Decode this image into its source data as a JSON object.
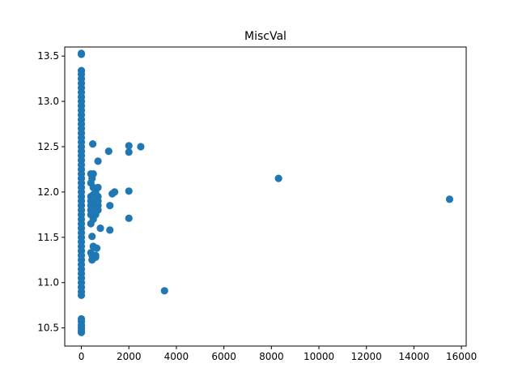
{
  "chart_data": {
    "type": "scatter",
    "title": "MiscVal",
    "xlabel": "",
    "ylabel": "",
    "xlim": [
      -700,
      16200
    ],
    "ylim": [
      10.3,
      13.6
    ],
    "x_ticks": [
      0,
      2000,
      4000,
      6000,
      8000,
      10000,
      12000,
      14000,
      16000
    ],
    "x_tick_labels": [
      "0",
      "2000",
      "4000",
      "6000",
      "8000",
      "10000",
      "12000",
      "14000",
      "16000"
    ],
    "y_ticks": [
      10.5,
      11.0,
      11.5,
      12.0,
      12.5,
      13.0,
      13.5
    ],
    "y_tick_labels": [
      "10.5",
      "11.0",
      "11.5",
      "12.0",
      "12.5",
      "13.0",
      "13.5"
    ],
    "grid": false,
    "marker_color": "#1f77b4",
    "series": [
      {
        "points": [
          [
            0,
            13.53
          ],
          [
            0,
            13.52
          ],
          [
            0,
            13.34
          ],
          [
            0,
            13.3
          ],
          [
            0,
            13.25
          ],
          [
            0,
            13.2
          ],
          [
            0,
            13.15
          ],
          [
            0,
            13.1
          ],
          [
            0,
            13.05
          ],
          [
            0,
            13.0
          ],
          [
            0,
            12.95
          ],
          [
            0,
            12.9
          ],
          [
            0,
            12.85
          ],
          [
            0,
            12.8
          ],
          [
            0,
            12.75
          ],
          [
            0,
            12.7
          ],
          [
            0,
            12.65
          ],
          [
            0,
            12.6
          ],
          [
            0,
            12.55
          ],
          [
            0,
            12.5
          ],
          [
            0,
            12.45
          ],
          [
            0,
            12.4
          ],
          [
            0,
            12.35
          ],
          [
            0,
            12.3
          ],
          [
            0,
            12.25
          ],
          [
            0,
            12.2
          ],
          [
            0,
            12.15
          ],
          [
            0,
            12.1
          ],
          [
            0,
            12.05
          ],
          [
            0,
            12.0
          ],
          [
            0,
            11.95
          ],
          [
            0,
            11.9
          ],
          [
            0,
            11.85
          ],
          [
            0,
            11.8
          ],
          [
            0,
            11.75
          ],
          [
            0,
            11.7
          ],
          [
            0,
            11.65
          ],
          [
            0,
            11.6
          ],
          [
            0,
            11.55
          ],
          [
            0,
            11.5
          ],
          [
            0,
            11.45
          ],
          [
            0,
            11.4
          ],
          [
            0,
            11.35
          ],
          [
            0,
            11.3
          ],
          [
            0,
            11.25
          ],
          [
            0,
            11.2
          ],
          [
            0,
            11.15
          ],
          [
            0,
            11.1
          ],
          [
            0,
            11.05
          ],
          [
            0,
            11.0
          ],
          [
            0,
            10.95
          ],
          [
            0,
            10.9
          ],
          [
            0,
            10.86
          ],
          [
            0,
            10.6
          ],
          [
            0,
            10.57
          ],
          [
            0,
            10.53
          ],
          [
            0,
            10.5
          ],
          [
            0,
            10.47
          ],
          [
            0,
            10.45
          ],
          [
            400,
            12.2
          ],
          [
            400,
            12.1
          ],
          [
            400,
            11.95
          ],
          [
            400,
            11.9
          ],
          [
            400,
            11.85
          ],
          [
            400,
            11.8
          ],
          [
            400,
            11.75
          ],
          [
            400,
            11.65
          ],
          [
            450,
            11.51
          ],
          [
            400,
            11.33
          ],
          [
            450,
            11.25
          ],
          [
            450,
            11.3
          ],
          [
            450,
            12.15
          ],
          [
            480,
            12.53
          ],
          [
            500,
            12.2
          ],
          [
            500,
            12.05
          ],
          [
            500,
            11.97
          ],
          [
            500,
            11.7
          ],
          [
            500,
            11.4
          ],
          [
            600,
            12.0
          ],
          [
            600,
            11.85
          ],
          [
            600,
            11.75
          ],
          [
            600,
            11.3
          ],
          [
            600,
            11.28
          ],
          [
            650,
            11.38
          ],
          [
            650,
            11.9
          ],
          [
            700,
            12.34
          ],
          [
            700,
            12.05
          ],
          [
            700,
            11.95
          ],
          [
            700,
            11.9
          ],
          [
            700,
            11.85
          ],
          [
            700,
            11.8
          ],
          [
            800,
            11.6
          ],
          [
            1150,
            12.45
          ],
          [
            1200,
            11.85
          ],
          [
            1200,
            11.58
          ],
          [
            1300,
            11.98
          ],
          [
            1400,
            12.0
          ],
          [
            2000,
            12.51
          ],
          [
            2000,
            12.44
          ],
          [
            2000,
            12.01
          ],
          [
            2000,
            11.71
          ],
          [
            2500,
            12.5
          ],
          [
            3500,
            10.91
          ],
          [
            8300,
            12.15
          ],
          [
            15500,
            11.92
          ]
        ]
      }
    ]
  }
}
